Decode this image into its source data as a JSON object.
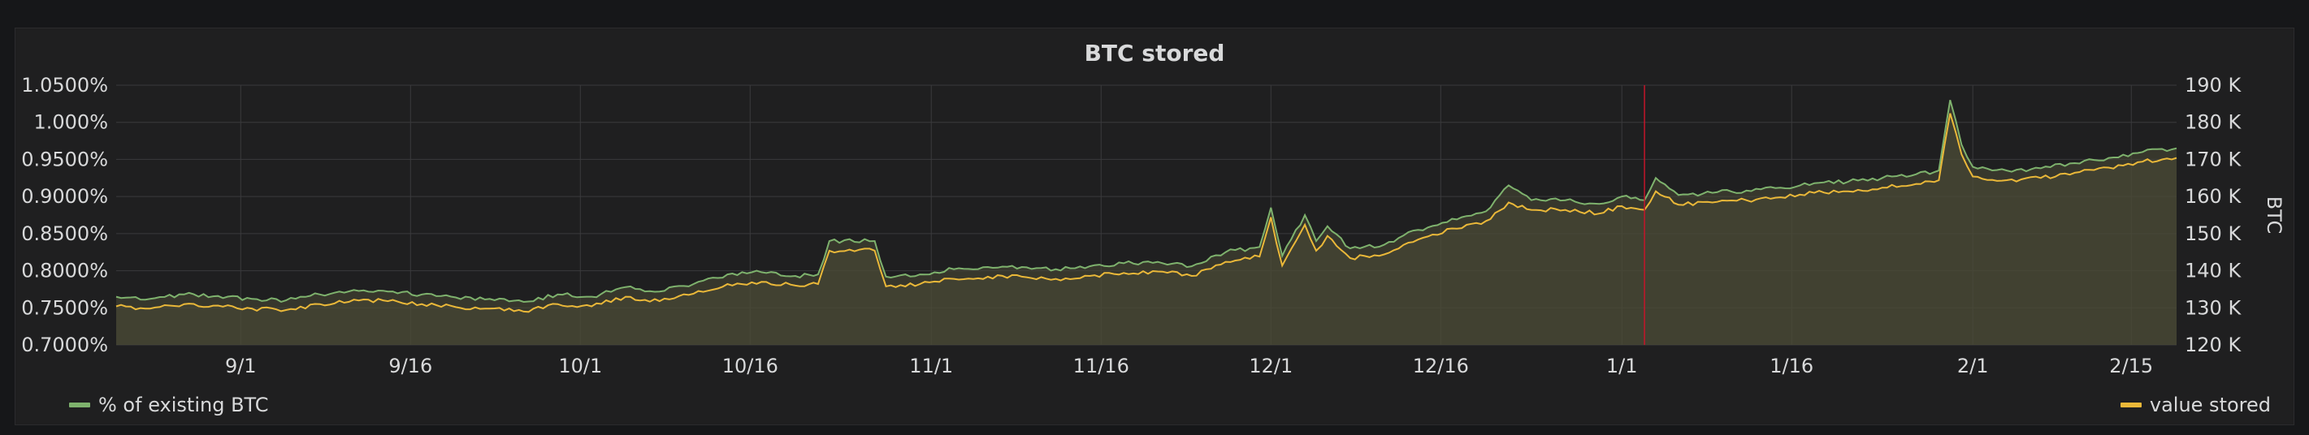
{
  "panel": {
    "title": "BTC stored"
  },
  "legend": {
    "left_label": "% of existing BTC",
    "right_label": "value stored"
  },
  "colors": {
    "background": "#161719",
    "panel": "#1f1f20",
    "grid": "#3a3a3c",
    "series_pct": "#7eb26d",
    "series_value": "#eab839",
    "fill": "#4b4a37",
    "annotation": "#c4162a",
    "text": "#d8d9da"
  },
  "chart_data": {
    "type": "area",
    "title": "BTC stored",
    "x_range": [
      "2017-08-21",
      "2018-02-19"
    ],
    "x_ticks": [
      "9/1",
      "9/16",
      "10/1",
      "10/16",
      "11/1",
      "11/16",
      "12/1",
      "12/16",
      "1/1",
      "1/16",
      "2/1",
      "2/15"
    ],
    "y_left": {
      "ylim": [
        0.007,
        0.0105
      ],
      "ticks": [
        "0.7000%",
        "0.7500%",
        "0.8000%",
        "0.8500%",
        "0.9000%",
        "0.9500%",
        "1.000%",
        "1.0500%"
      ]
    },
    "y_right": {
      "label": "BTC",
      "ylim": [
        120000,
        190000
      ],
      "ticks": [
        "120 K",
        "130 K",
        "140 K",
        "150 K",
        "160 K",
        "170 K",
        "180 K",
        "190 K"
      ]
    },
    "grid": true,
    "legend_placement": "bottom",
    "annotation_x": "2018-01-03",
    "series": [
      {
        "name": "% of existing BTC",
        "axis": "left",
        "points": [
          [
            "2017-08-21",
            0.00765
          ],
          [
            "2017-08-24",
            0.00762
          ],
          [
            "2017-08-27",
            0.00768
          ],
          [
            "2017-08-30",
            0.00766
          ],
          [
            "2017-09-02",
            0.00762
          ],
          [
            "2017-09-05",
            0.0076
          ],
          [
            "2017-09-08",
            0.00768
          ],
          [
            "2017-09-11",
            0.00774
          ],
          [
            "2017-09-14",
            0.00772
          ],
          [
            "2017-09-17",
            0.00768
          ],
          [
            "2017-09-20",
            0.00764
          ],
          [
            "2017-09-23",
            0.00762
          ],
          [
            "2017-09-26",
            0.00758
          ],
          [
            "2017-09-29",
            0.00768
          ],
          [
            "2017-10-02",
            0.00765
          ],
          [
            "2017-10-05",
            0.00778
          ],
          [
            "2017-10-08",
            0.00772
          ],
          [
            "2017-10-11",
            0.00782
          ],
          [
            "2017-10-14",
            0.00795
          ],
          [
            "2017-10-17",
            0.00798
          ],
          [
            "2017-10-20",
            0.00793
          ],
          [
            "2017-10-22",
            0.00795
          ],
          [
            "2017-10-23",
            0.0084
          ],
          [
            "2017-10-27",
            0.0084
          ],
          [
            "2017-10-28",
            0.00792
          ],
          [
            "2017-10-31",
            0.00795
          ],
          [
            "2017-11-03",
            0.00802
          ],
          [
            "2017-11-06",
            0.00805
          ],
          [
            "2017-11-09",
            0.00805
          ],
          [
            "2017-11-12",
            0.00802
          ],
          [
            "2017-11-15",
            0.00806
          ],
          [
            "2017-11-18",
            0.0081
          ],
          [
            "2017-11-21",
            0.00812
          ],
          [
            "2017-11-24",
            0.00806
          ],
          [
            "2017-11-27",
            0.00825
          ],
          [
            "2017-11-30",
            0.00832
          ],
          [
            "2017-12-01",
            0.00885
          ],
          [
            "2017-12-02",
            0.0082
          ],
          [
            "2017-12-04",
            0.00875
          ],
          [
            "2017-12-05",
            0.0084
          ],
          [
            "2017-12-06",
            0.0086
          ],
          [
            "2017-12-08",
            0.0083
          ],
          [
            "2017-12-11",
            0.00835
          ],
          [
            "2017-12-14",
            0.00855
          ],
          [
            "2017-12-17",
            0.0087
          ],
          [
            "2017-12-20",
            0.0088
          ],
          [
            "2017-12-22",
            0.00915
          ],
          [
            "2017-12-24",
            0.00895
          ],
          [
            "2017-12-27",
            0.00895
          ],
          [
            "2017-12-30",
            0.0089
          ],
          [
            "2018-01-01",
            0.009
          ],
          [
            "2018-01-03",
            0.00895
          ],
          [
            "2018-01-04",
            0.00925
          ],
          [
            "2018-01-06",
            0.00902
          ],
          [
            "2018-01-09",
            0.00905
          ],
          [
            "2018-01-12",
            0.00908
          ],
          [
            "2018-01-15",
            0.00912
          ],
          [
            "2018-01-18",
            0.00918
          ],
          [
            "2018-01-21",
            0.0092
          ],
          [
            "2018-01-24",
            0.00925
          ],
          [
            "2018-01-27",
            0.0093
          ],
          [
            "2018-01-29",
            0.00935
          ],
          [
            "2018-01-30",
            0.0103
          ],
          [
            "2018-01-31",
            0.0097
          ],
          [
            "2018-02-01",
            0.0094
          ],
          [
            "2018-02-04",
            0.00935
          ],
          [
            "2018-02-07",
            0.00938
          ],
          [
            "2018-02-10",
            0.00945
          ],
          [
            "2018-02-13",
            0.00952
          ],
          [
            "2018-02-16",
            0.0096
          ],
          [
            "2018-02-19",
            0.00965
          ]
        ]
      },
      {
        "name": "value stored",
        "axis": "right",
        "points": [
          [
            "2017-08-21",
            130400
          ],
          [
            "2017-08-24",
            129800
          ],
          [
            "2017-08-27",
            131000
          ],
          [
            "2017-08-30",
            130600
          ],
          [
            "2017-09-02",
            129800
          ],
          [
            "2017-09-05",
            129400
          ],
          [
            "2017-09-08",
            131000
          ],
          [
            "2017-09-11",
            132200
          ],
          [
            "2017-09-14",
            131800
          ],
          [
            "2017-09-17",
            131000
          ],
          [
            "2017-09-20",
            130200
          ],
          [
            "2017-09-23",
            129800
          ],
          [
            "2017-09-26",
            129000
          ],
          [
            "2017-09-29",
            131000
          ],
          [
            "2017-10-02",
            130400
          ],
          [
            "2017-10-05",
            133000
          ],
          [
            "2017-10-08",
            131800
          ],
          [
            "2017-10-11",
            133800
          ],
          [
            "2017-10-14",
            136400
          ],
          [
            "2017-10-17",
            137000
          ],
          [
            "2017-10-20",
            136000
          ],
          [
            "2017-10-22",
            136400
          ],
          [
            "2017-10-23",
            145400
          ],
          [
            "2017-10-27",
            145400
          ],
          [
            "2017-10-28",
            135800
          ],
          [
            "2017-10-31",
            136400
          ],
          [
            "2017-11-03",
            137800
          ],
          [
            "2017-11-06",
            138400
          ],
          [
            "2017-11-09",
            138400
          ],
          [
            "2017-11-12",
            137800
          ],
          [
            "2017-11-15",
            138600
          ],
          [
            "2017-11-18",
            139400
          ],
          [
            "2017-11-21",
            139800
          ],
          [
            "2017-11-24",
            138600
          ],
          [
            "2017-11-27",
            142400
          ],
          [
            "2017-11-30",
            143800
          ],
          [
            "2017-12-01",
            154400
          ],
          [
            "2017-12-02",
            141400
          ],
          [
            "2017-12-04",
            152400
          ],
          [
            "2017-12-05",
            145400
          ],
          [
            "2017-12-06",
            149400
          ],
          [
            "2017-12-08",
            143400
          ],
          [
            "2017-12-11",
            144400
          ],
          [
            "2017-12-14",
            148400
          ],
          [
            "2017-12-17",
            151400
          ],
          [
            "2017-12-20",
            153400
          ],
          [
            "2017-12-22",
            158400
          ],
          [
            "2017-12-24",
            156400
          ],
          [
            "2017-12-27",
            156400
          ],
          [
            "2017-12-30",
            155400
          ],
          [
            "2018-01-01",
            157400
          ],
          [
            "2018-01-03",
            156400
          ],
          [
            "2018-01-04",
            161400
          ],
          [
            "2018-01-06",
            157800
          ],
          [
            "2018-01-09",
            158400
          ],
          [
            "2018-01-12",
            159000
          ],
          [
            "2018-01-15",
            159800
          ],
          [
            "2018-01-18",
            161000
          ],
          [
            "2018-01-21",
            161400
          ],
          [
            "2018-01-24",
            162400
          ],
          [
            "2018-01-27",
            163400
          ],
          [
            "2018-01-29",
            164400
          ],
          [
            "2018-01-30",
            182400
          ],
          [
            "2018-01-31",
            171400
          ],
          [
            "2018-02-01",
            165400
          ],
          [
            "2018-02-04",
            164400
          ],
          [
            "2018-02-07",
            165000
          ],
          [
            "2018-02-10",
            166400
          ],
          [
            "2018-02-13",
            167800
          ],
          [
            "2018-02-16",
            169400
          ],
          [
            "2018-02-19",
            170400
          ]
        ]
      }
    ]
  }
}
